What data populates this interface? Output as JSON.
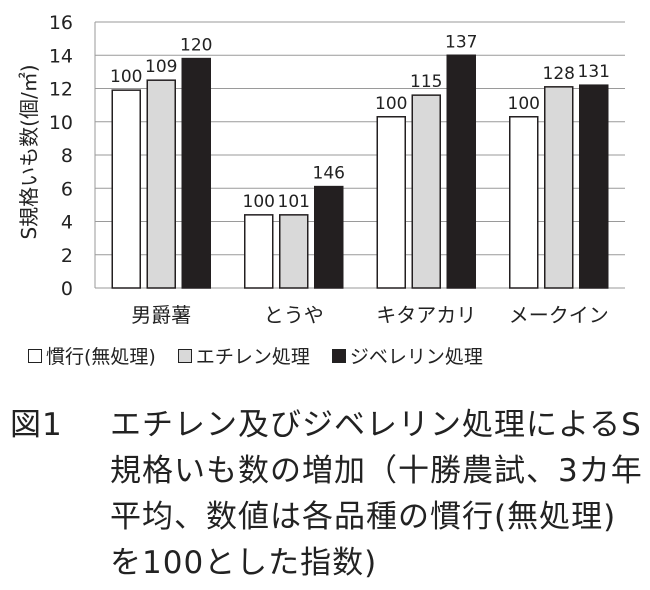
{
  "chart_data": {
    "type": "bar",
    "ylabel": "S規格いも数(個/㎡)",
    "ylim": [
      0,
      16
    ],
    "yticks": [
      0,
      2,
      4,
      6,
      8,
      10,
      12,
      14,
      16
    ],
    "categories": [
      "男爵薯",
      "とうや",
      "キタアカリ",
      "メークイン"
    ],
    "series": [
      {
        "name": "慣行(無処理)",
        "color": "#ffffff",
        "values": [
          11.9,
          4.4,
          10.3,
          10.3
        ],
        "labels": [
          "100",
          "100",
          "100",
          "100"
        ]
      },
      {
        "name": "エチレン処理",
        "color": "#d9d9d9",
        "values": [
          12.5,
          4.4,
          11.6,
          12.1
        ],
        "labels": [
          "109",
          "101",
          "115",
          "128"
        ]
      },
      {
        "name": "ジベレリン処理",
        "color": "#231f20",
        "values": [
          13.8,
          6.1,
          14.0,
          12.2
        ],
        "labels": [
          "120",
          "146",
          "137",
          "131"
        ]
      }
    ],
    "grid": true,
    "legend": "bottom"
  },
  "caption": {
    "figure_number": "図1",
    "text": "エチレン及びジベレリン処理によるS規格いも数の増加（十勝農試、3カ年平均、数値は各品種の慣行(無処理)を100とした指数)"
  }
}
